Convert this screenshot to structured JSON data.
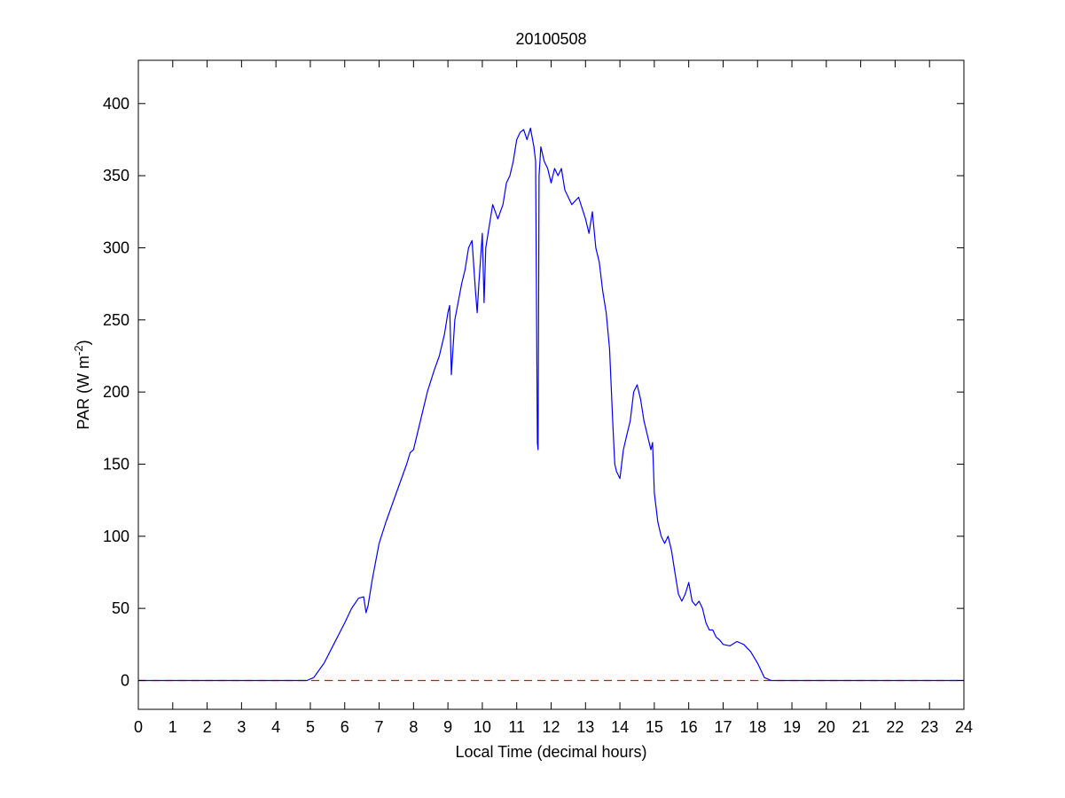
{
  "chart_data": {
    "type": "line",
    "title": "20100508",
    "xlabel": "Local Time (decimal hours)",
    "ylabel": {
      "prefix": "PAR (W m",
      "superscript": "-2",
      "suffix": ")"
    },
    "xlim": [
      0,
      24
    ],
    "ylim": [
      -20,
      430
    ],
    "xticks": [
      0,
      1,
      2,
      3,
      4,
      5,
      6,
      7,
      8,
      9,
      10,
      11,
      12,
      13,
      14,
      15,
      16,
      17,
      18,
      19,
      20,
      21,
      22,
      23,
      24
    ],
    "yticks": [
      0,
      50,
      100,
      150,
      200,
      250,
      300,
      350,
      400
    ],
    "grid": false,
    "legend": "none",
    "series": [
      {
        "color": "#0000ff",
        "style": "solid",
        "x": [
          0,
          4.9,
          5.1,
          5.4,
          5.7,
          6.0,
          6.2,
          6.4,
          6.55,
          6.62,
          6.68,
          6.8,
          7.0,
          7.2,
          7.5,
          7.8,
          7.9,
          8.0,
          8.2,
          8.4,
          8.6,
          8.75,
          8.9,
          9.0,
          9.05,
          9.1,
          9.2,
          9.4,
          9.5,
          9.6,
          9.7,
          9.8,
          9.85,
          9.9,
          10.0,
          10.05,
          10.1,
          10.2,
          10.3,
          10.45,
          10.6,
          10.7,
          10.8,
          10.9,
          11.0,
          11.1,
          11.2,
          11.3,
          11.4,
          11.5,
          11.55,
          11.6,
          11.62,
          11.65,
          11.7,
          11.8,
          11.9,
          12.0,
          12.1,
          12.2,
          12.3,
          12.4,
          12.5,
          12.6,
          12.8,
          13.0,
          13.1,
          13.2,
          13.3,
          13.4,
          13.5,
          13.6,
          13.7,
          13.8,
          13.85,
          13.9,
          14.0,
          14.05,
          14.1,
          14.2,
          14.3,
          14.4,
          14.5,
          14.6,
          14.7,
          14.8,
          14.9,
          14.95,
          15.0,
          15.1,
          15.2,
          15.3,
          15.4,
          15.5,
          15.6,
          15.7,
          15.8,
          15.9,
          16.0,
          16.1,
          16.2,
          16.3,
          16.4,
          16.5,
          16.6,
          16.7,
          16.8,
          16.9,
          17.0,
          17.2,
          17.4,
          17.6,
          17.8,
          18.0,
          18.2,
          18.4,
          18.6,
          18.8,
          19.0,
          19.2,
          19.5,
          24
        ],
        "y": [
          0,
          0,
          2,
          12,
          26,
          40,
          50,
          57,
          58,
          47,
          52,
          70,
          95,
          110,
          130,
          150,
          158,
          160,
          180,
          200,
          215,
          225,
          240,
          255,
          260,
          212,
          250,
          275,
          285,
          300,
          305,
          270,
          255,
          275,
          310,
          262,
          300,
          315,
          330,
          320,
          330,
          345,
          350,
          360,
          375,
          380,
          382,
          375,
          383,
          370,
          360,
          165,
          160,
          350,
          370,
          360,
          355,
          345,
          355,
          350,
          355,
          340,
          335,
          330,
          335,
          320,
          310,
          325,
          300,
          290,
          270,
          255,
          230,
          175,
          150,
          145,
          140,
          150,
          160,
          170,
          180,
          200,
          205,
          195,
          180,
          170,
          160,
          165,
          130,
          110,
          100,
          95,
          100,
          90,
          75,
          60,
          55,
          60,
          68,
          55,
          52,
          55,
          50,
          40,
          35,
          35,
          30,
          28,
          25,
          24,
          27,
          25,
          20,
          12,
          2,
          0,
          0,
          0,
          0,
          0,
          0,
          0
        ]
      },
      {
        "color": "#ff0000",
        "style": "dashed",
        "x": [
          0,
          24
        ],
        "y": [
          0,
          0
        ]
      }
    ]
  }
}
